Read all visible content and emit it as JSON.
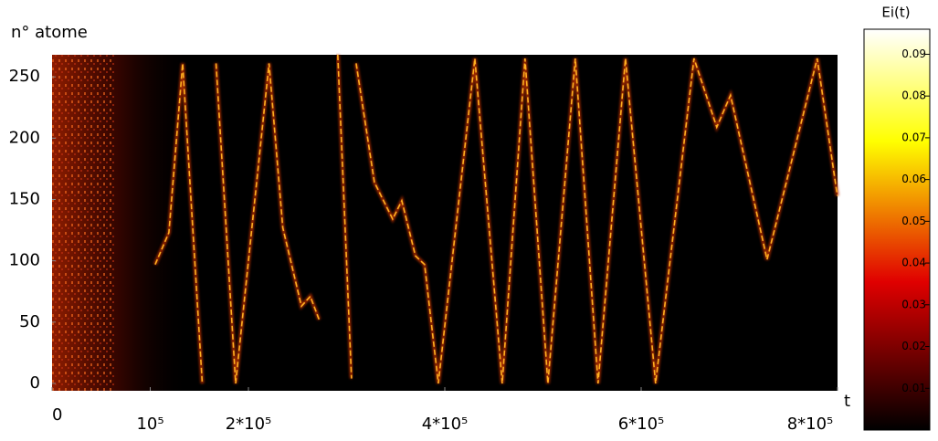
{
  "chart_data": {
    "type": "heatmap-traces",
    "y_label": "n° atome",
    "x_label": "t",
    "colorbar_label": "Ei(t)",
    "colormap": "hot",
    "xlim": [
      0,
      800000
    ],
    "ylim": [
      -6,
      268
    ],
    "clim": [
      0,
      0.096
    ],
    "xticks": [
      0,
      {
        "value": 100000,
        "label": "10⁵"
      },
      {
        "value": 200000,
        "label": "2*10⁵"
      },
      {
        "value": 400000,
        "label": "4*10⁵"
      },
      {
        "value": 600000,
        "label": "6*10⁵"
      },
      {
        "value": 800000,
        "label": "8*10⁵"
      }
    ],
    "yticks": [
      0,
      50,
      100,
      150,
      200,
      250
    ],
    "cticks": [
      0.01,
      0.02,
      0.03,
      0.04,
      0.05,
      0.06,
      0.07,
      0.08,
      0.09
    ],
    "series": [
      {
        "color": "#ffb020",
        "x": [
          105000,
          119000,
          133000,
          153000
        ],
        "values": [
          97,
          123,
          261,
          0
        ]
      },
      {
        "color": "#ffb020",
        "x": [
          167000,
          187000,
          221000,
          235000,
          254000,
          263000,
          272000
        ],
        "values": [
          261,
          0,
          261,
          127,
          63,
          71,
          52
        ]
      },
      {
        "color": "#ffb020",
        "x": [
          291000,
          305000
        ],
        "values": [
          268,
          4
        ]
      },
      {
        "color": "#ffb020",
        "x": [
          309700,
          328300,
          346900,
          356200,
          370100,
          379400,
          393400,
          430600,
          458500,
          481700,
          505000,
          532900,
          556100,
          584000,
          614700,
          653800,
          677000,
          691000,
          728200,
          779300,
          799800
        ],
        "values": [
          261,
          164,
          134,
          149,
          104,
          97,
          0,
          265,
          0,
          265,
          0,
          265,
          0,
          265,
          0,
          265,
          209,
          235,
          101,
          265,
          153
        ]
      }
    ]
  }
}
